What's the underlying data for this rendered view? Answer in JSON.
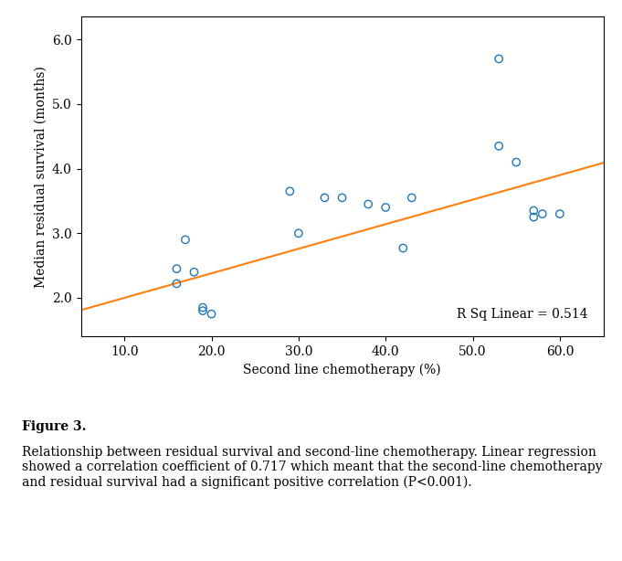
{
  "chart_data": {
    "type": "scatter",
    "xlabel": "Second line chemotherapy (%)",
    "ylabel": "Median residual survival (months)",
    "annotations": [
      "R Sq Linear = 0.514"
    ],
    "caption": {
      "bold": "Figure 3.",
      "text": "Relationship between residual survival and second-line chemotherapy. Linear regression showed a correlation coefficient of 0.717 which meant that the second-line chemotherapy and residual survival had a significant positive correlation (P<0.001)."
    },
    "series": [
      {
        "type": "scatter",
        "marker": "o",
        "x": [
          16,
          16,
          17,
          18,
          19,
          19,
          20,
          29,
          30,
          33,
          35,
          38,
          40,
          42,
          43,
          53,
          53,
          55,
          57,
          57,
          58,
          60
        ],
        "values": [
          2.22,
          2.45,
          2.9,
          2.4,
          1.8,
          1.85,
          1.75,
          3.65,
          3.0,
          3.55,
          3.55,
          3.45,
          3.4,
          2.77,
          3.55,
          4.35,
          5.7,
          4.1,
          3.35,
          3.25,
          3.3,
          3.3
        ]
      },
      {
        "type": "line",
        "x": [
          5,
          65
        ],
        "values": [
          1.81,
          4.09
        ]
      }
    ],
    "xlim": [
      5,
      65
    ],
    "ylim": [
      1.4,
      6.35
    ],
    "xticks": [
      {
        "value": 10,
        "label": "10.0"
      },
      {
        "value": 20,
        "label": "20.0"
      },
      {
        "value": 30,
        "label": "30.0"
      },
      {
        "value": 40,
        "label": "40.0"
      },
      {
        "value": 50,
        "label": "50.0"
      },
      {
        "value": 60,
        "label": "60.0"
      }
    ],
    "yticks": [
      {
        "value": 2,
        "label": "2.0"
      },
      {
        "value": 3,
        "label": "3.0"
      },
      {
        "value": 4,
        "label": "4.0"
      },
      {
        "value": 5,
        "label": "5.0"
      },
      {
        "value": 6,
        "label": "6.0"
      }
    ],
    "grid": false
  }
}
